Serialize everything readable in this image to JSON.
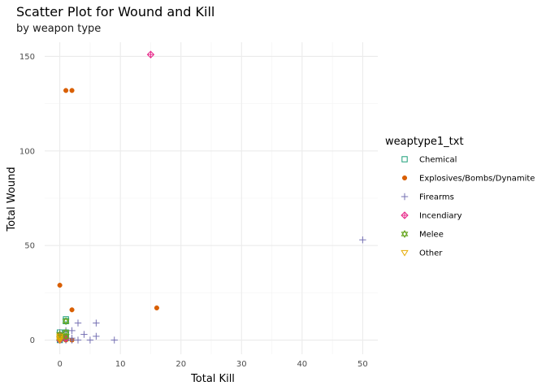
{
  "chart_data": {
    "type": "scatter",
    "title": "Scatter Plot for Wound and Kill",
    "subtitle": "by weapon type",
    "xlabel": "Total Kill",
    "ylabel": "Total Wound",
    "xlim": [
      -2.5,
      52.5
    ],
    "ylim": [
      -7.5,
      157.5
    ],
    "x_ticks": [
      0,
      10,
      20,
      30,
      40,
      50
    ],
    "y_ticks": [
      0,
      50,
      100,
      150
    ],
    "x_tick_labels": [
      "0",
      "10",
      "20",
      "30",
      "40",
      "50"
    ],
    "y_tick_labels": [
      "0",
      "50",
      "100",
      "150"
    ],
    "grid": true,
    "legend_title": "weaptype1_txt",
    "legend_position": "right",
    "series": [
      {
        "name": "Chemical",
        "color": "#1b9e77",
        "marker": "square-open",
        "points": [
          [
            0,
            0
          ],
          [
            0,
            2
          ],
          [
            1,
            3
          ],
          [
            1,
            4
          ],
          [
            1,
            10
          ],
          [
            1,
            11
          ],
          [
            0,
            4
          ],
          [
            1,
            1
          ]
        ]
      },
      {
        "name": "Explosives/Bombs/Dynamite",
        "color": "#d95f02",
        "marker": "circle-filled",
        "points": [
          [
            1,
            132
          ],
          [
            2,
            132
          ],
          [
            0,
            29
          ],
          [
            2,
            16
          ],
          [
            16,
            17
          ],
          [
            0,
            0
          ],
          [
            1,
            0
          ],
          [
            0,
            1
          ],
          [
            1,
            2
          ],
          [
            2,
            0
          ],
          [
            0,
            3
          ],
          [
            1,
            1
          ]
        ]
      },
      {
        "name": "Firearms",
        "color": "#7570b3",
        "marker": "plus",
        "points": [
          [
            50,
            53
          ],
          [
            3,
            9
          ],
          [
            6,
            9
          ],
          [
            1,
            5
          ],
          [
            2,
            5
          ],
          [
            4,
            3
          ],
          [
            6,
            2
          ],
          [
            0,
            4
          ],
          [
            9,
            0
          ],
          [
            5,
            0
          ],
          [
            3,
            0
          ],
          [
            2,
            1
          ],
          [
            0,
            0
          ],
          [
            1,
            0
          ],
          [
            0,
            2
          ],
          [
            1,
            3
          ],
          [
            2,
            0
          ]
        ]
      },
      {
        "name": "Incendiary",
        "color": "#e7298a",
        "marker": "diamond-plus",
        "points": [
          [
            15,
            151
          ],
          [
            1,
            1
          ],
          [
            0,
            0
          ]
        ]
      },
      {
        "name": "Melee",
        "color": "#66a61e",
        "marker": "star-of-david",
        "points": [
          [
            1,
            10
          ],
          [
            1,
            4
          ],
          [
            0,
            3
          ],
          [
            0,
            1
          ],
          [
            1,
            2
          ]
        ]
      },
      {
        "name": "Other",
        "color": "#e6ab02",
        "marker": "triangle-down",
        "points": [
          [
            0,
            0
          ],
          [
            0,
            1
          ],
          [
            0,
            2
          ]
        ]
      }
    ]
  }
}
